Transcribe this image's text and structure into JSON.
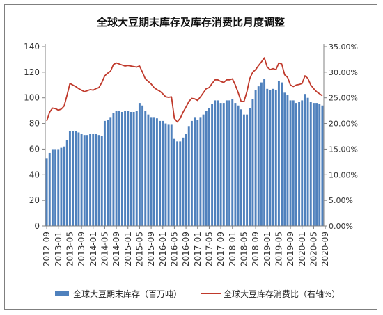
{
  "chart_data": {
    "type": "bar+line",
    "title": "全球大豆期末库存及库存消费比月度调整",
    "legend_position": "bottom",
    "grid": false,
    "x_tick_labels": [
      "2012-09",
      "2013-01",
      "2013-05",
      "2013-09",
      "2014-01",
      "2014-05",
      "2014-09",
      "2015-01",
      "2015-05",
      "2015-09",
      "2016-01",
      "2016-05",
      "2016-09",
      "2017-01",
      "2017-05",
      "2017-09",
      "2018-01",
      "2018-05",
      "2018-09",
      "2019-01",
      "2019-05",
      "2019-09",
      "2020-01",
      "2020-05",
      "2020-09"
    ],
    "y_left": {
      "min": 0,
      "max": 140,
      "ticks": [
        "0",
        "20",
        "40",
        "60",
        "80",
        "100",
        "120",
        "140"
      ]
    },
    "y_right": {
      "min": 0,
      "max": 0.35,
      "ticks": [
        "0.00%",
        "5.00%",
        "10.00%",
        "15.00%",
        "20.00%",
        "25.00%",
        "30.00%",
        "35.00%"
      ]
    },
    "series": [
      {
        "name": "全球大豆期末库存（百万吨）",
        "type": "bar",
        "axis": "left",
        "color": "#4f81bd",
        "values": [
          53,
          57,
          60,
          60,
          60,
          61,
          62,
          67,
          74,
          74,
          74,
          73,
          72,
          71,
          71,
          72,
          72,
          72,
          71,
          70,
          82,
          83,
          85,
          88,
          90,
          90,
          89,
          90,
          90,
          89,
          89,
          90,
          96,
          94,
          90,
          87,
          85,
          85,
          84,
          82,
          82,
          80,
          79,
          79,
          68,
          66,
          66,
          69,
          72,
          78,
          82,
          85,
          83,
          85,
          87,
          90,
          92,
          95,
          98,
          98,
          96,
          96,
          98,
          98,
          99,
          96,
          94,
          91,
          87,
          87,
          92,
          99,
          106,
          109,
          112,
          115,
          107,
          106,
          107,
          106,
          113,
          112,
          104,
          102,
          98,
          98,
          96,
          97,
          98,
          103,
          100,
          97,
          96,
          96,
          95,
          94
        ]
      },
      {
        "name": "全球大豆库存消费比（右轴%）",
        "type": "line",
        "axis": "right",
        "color": "#c0392b",
        "values": [
          0.205,
          0.222,
          0.23,
          0.229,
          0.226,
          0.228,
          0.234,
          0.255,
          0.278,
          0.275,
          0.272,
          0.268,
          0.265,
          0.262,
          0.264,
          0.266,
          0.265,
          0.268,
          0.27,
          0.28,
          0.293,
          0.298,
          0.302,
          0.315,
          0.318,
          0.316,
          0.314,
          0.312,
          0.313,
          0.312,
          0.311,
          0.31,
          0.312,
          0.3,
          0.287,
          0.282,
          0.277,
          0.27,
          0.266,
          0.263,
          0.258,
          0.252,
          0.251,
          0.252,
          0.21,
          0.203,
          0.21,
          0.222,
          0.232,
          0.243,
          0.249,
          0.248,
          0.245,
          0.252,
          0.26,
          0.268,
          0.27,
          0.278,
          0.285,
          0.285,
          0.282,
          0.28,
          0.285,
          0.285,
          0.287,
          0.275,
          0.26,
          0.243,
          0.243,
          0.262,
          0.288,
          0.3,
          0.305,
          0.313,
          0.32,
          0.328,
          0.31,
          0.305,
          0.307,
          0.305,
          0.318,
          0.316,
          0.295,
          0.29,
          0.275,
          0.272,
          0.275,
          0.276,
          0.278,
          0.293,
          0.288,
          0.275,
          0.268,
          0.262,
          0.258,
          0.254
        ]
      }
    ]
  }
}
